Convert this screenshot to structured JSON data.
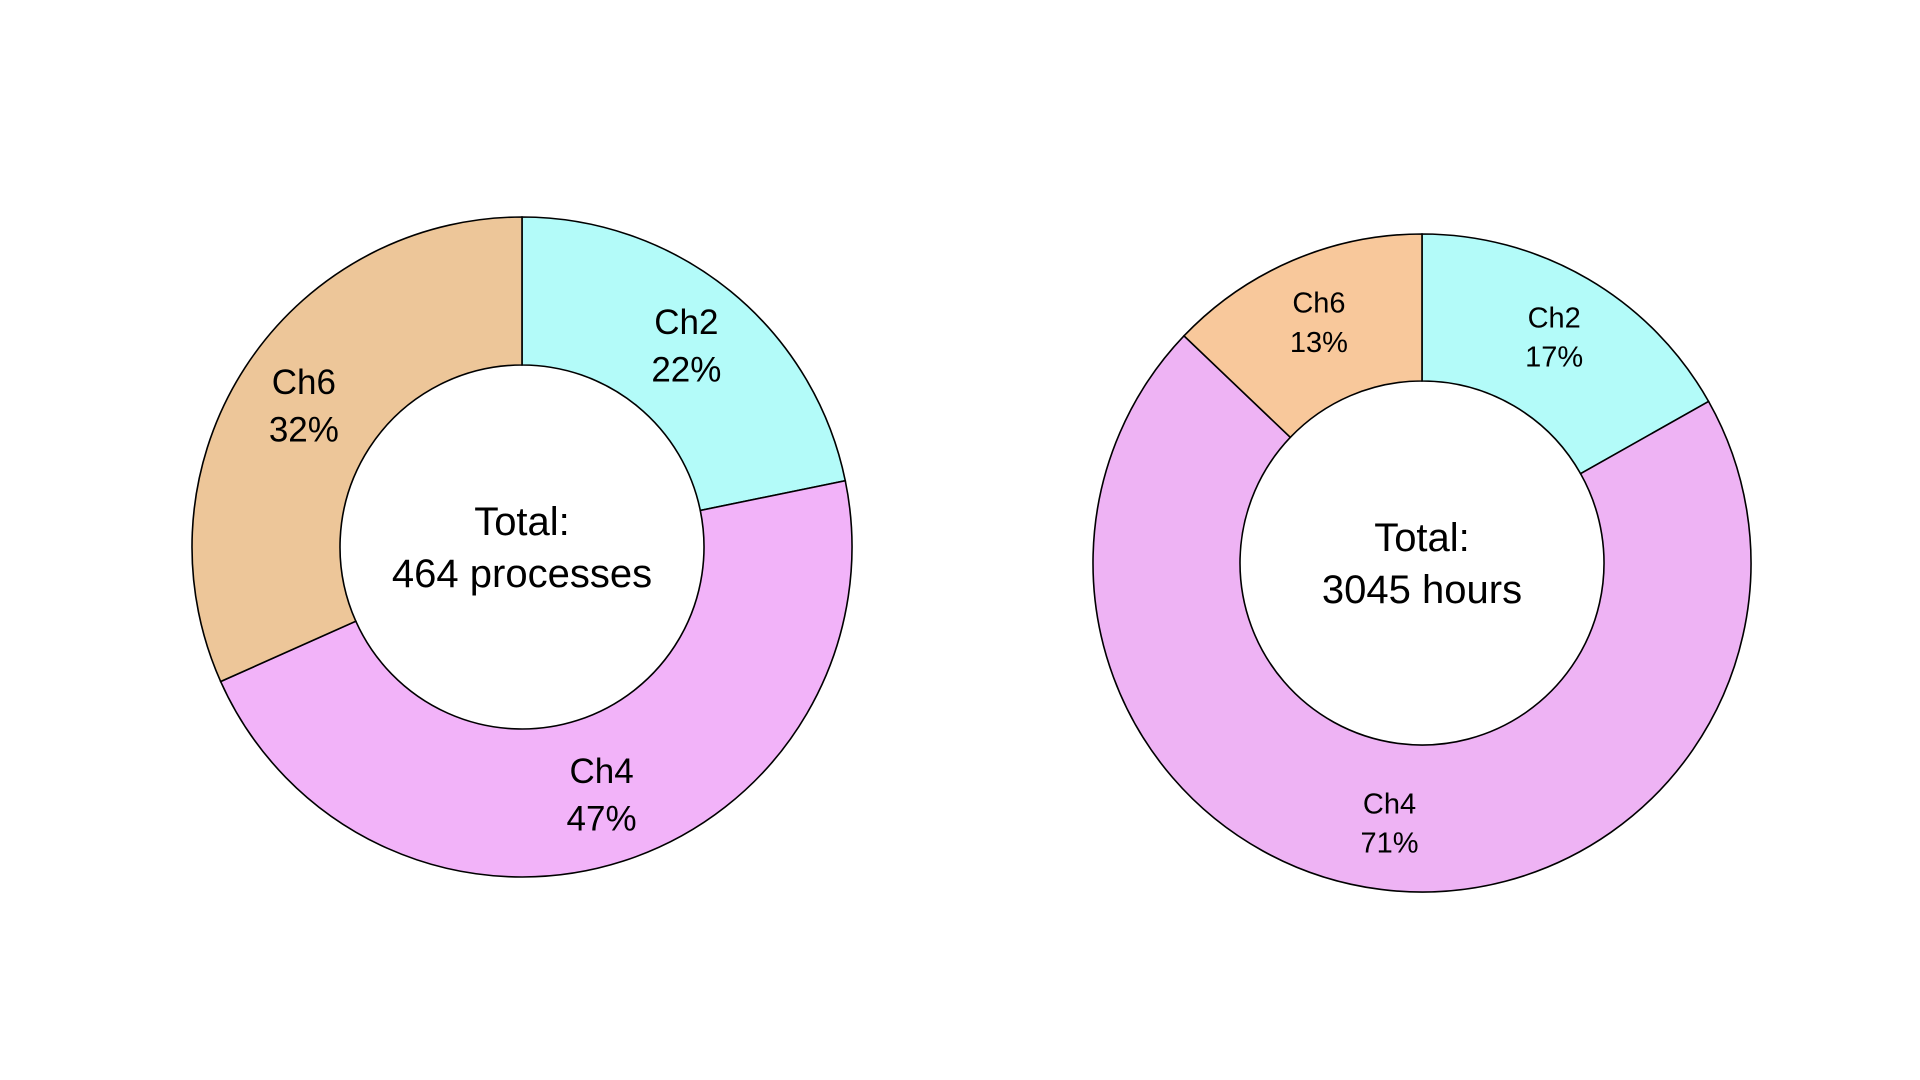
{
  "chart_data": [
    {
      "type": "pie",
      "donut": true,
      "center_label": [
        "Total:",
        "464 processes"
      ],
      "slices": [
        {
          "label": "Ch2",
          "percent_label": "22%",
          "value": 22,
          "color": "#b3fbf9"
        },
        {
          "label": "Ch4",
          "percent_label": "47%",
          "value": 47,
          "color": "#f2b3f9"
        },
        {
          "label": "Ch6",
          "percent_label": "32%",
          "value": 32,
          "color": "#edc699"
        }
      ],
      "start": "top",
      "direction": "clockwise",
      "legend": "none"
    },
    {
      "type": "pie",
      "donut": true,
      "center_label": [
        "Total:",
        "3045 hours"
      ],
      "slices": [
        {
          "label": "Ch2",
          "percent_label": "17%",
          "value": 17,
          "color": "#b3fbf9"
        },
        {
          "label": "Ch4",
          "percent_label": "71%",
          "value": 71,
          "color": "#eeb3f4"
        },
        {
          "label": "Ch6",
          "percent_label": "13%",
          "value": 13,
          "color": "#f8c89b"
        }
      ],
      "start": "top",
      "direction": "clockwise",
      "legend": "none"
    }
  ]
}
